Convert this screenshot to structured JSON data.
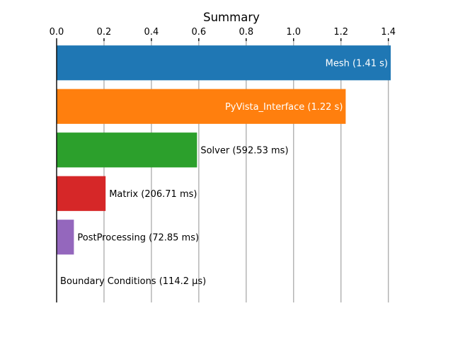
{
  "chart_data": {
    "type": "bar",
    "orientation": "horizontal",
    "title": "Summary",
    "xlabel": "",
    "ylabel": "",
    "xlim": [
      0,
      1.41
    ],
    "x_ticks": [
      0.0,
      0.2,
      0.4,
      0.6,
      0.8,
      1.0,
      1.2,
      1.4
    ],
    "x_tick_labels": [
      "0.0",
      "0.2",
      "0.4",
      "0.6",
      "0.8",
      "1.0",
      "1.2",
      "1.4"
    ],
    "x_axis_position": "top",
    "grid": "vertical",
    "unit": "s",
    "bars": [
      {
        "category": "Mesh",
        "value": 1.41,
        "label": "Mesh (1.41 s)",
        "color": "#1f77b4",
        "label_inside": true
      },
      {
        "category": "PyVista_Interface",
        "value": 1.22,
        "label": "PyVista_Interface (1.22 s)",
        "color": "#ff7f0e",
        "label_inside": true
      },
      {
        "category": "Solver",
        "value": 0.59253,
        "label": "Solver (592.53 ms)",
        "color": "#2ca02c",
        "label_inside": false
      },
      {
        "category": "Matrix",
        "value": 0.20671,
        "label": "Matrix (206.71 ms)",
        "color": "#d62728",
        "label_inside": false
      },
      {
        "category": "PostProcessing",
        "value": 0.07285,
        "label": "PostProcessing (72.85 ms)",
        "color": "#9467bd",
        "label_inside": false
      },
      {
        "category": "Boundary Conditions",
        "value": 0.0001142,
        "label": "Boundary Conditions (114.2 µs)",
        "color": "#8c564b",
        "label_inside": false
      }
    ]
  }
}
